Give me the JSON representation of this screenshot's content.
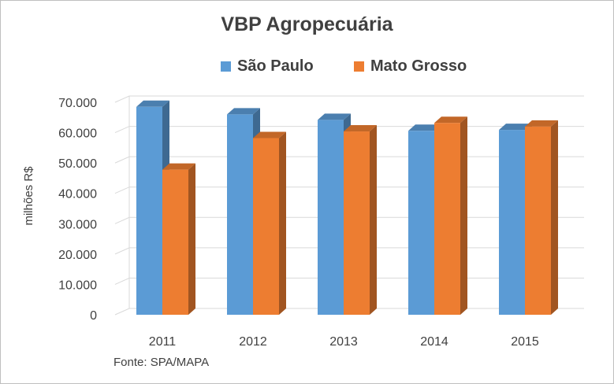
{
  "chart_data": {
    "type": "bar",
    "title": "VBP Agropecuária",
    "xlabel": "",
    "ylabel": "milhões R$",
    "categories": [
      "2011",
      "2012",
      "2013",
      "2014",
      "2015"
    ],
    "series": [
      {
        "name": "São Paulo",
        "color": "#5b9bd5",
        "values": [
          68500,
          66000,
          64200,
          60600,
          60900
        ]
      },
      {
        "name": "Mato Grosso",
        "color": "#ed7d31",
        "values": [
          47800,
          58200,
          60400,
          63200,
          62000
        ]
      }
    ],
    "ylim": [
      0,
      70000
    ],
    "yticks": [
      "0",
      "10.000",
      "20.000",
      "30.000",
      "40.000",
      "50.000",
      "60.000",
      "70.000"
    ],
    "grid": true,
    "legend_position": "top",
    "source": "Fonte: SPA/MAPA"
  }
}
